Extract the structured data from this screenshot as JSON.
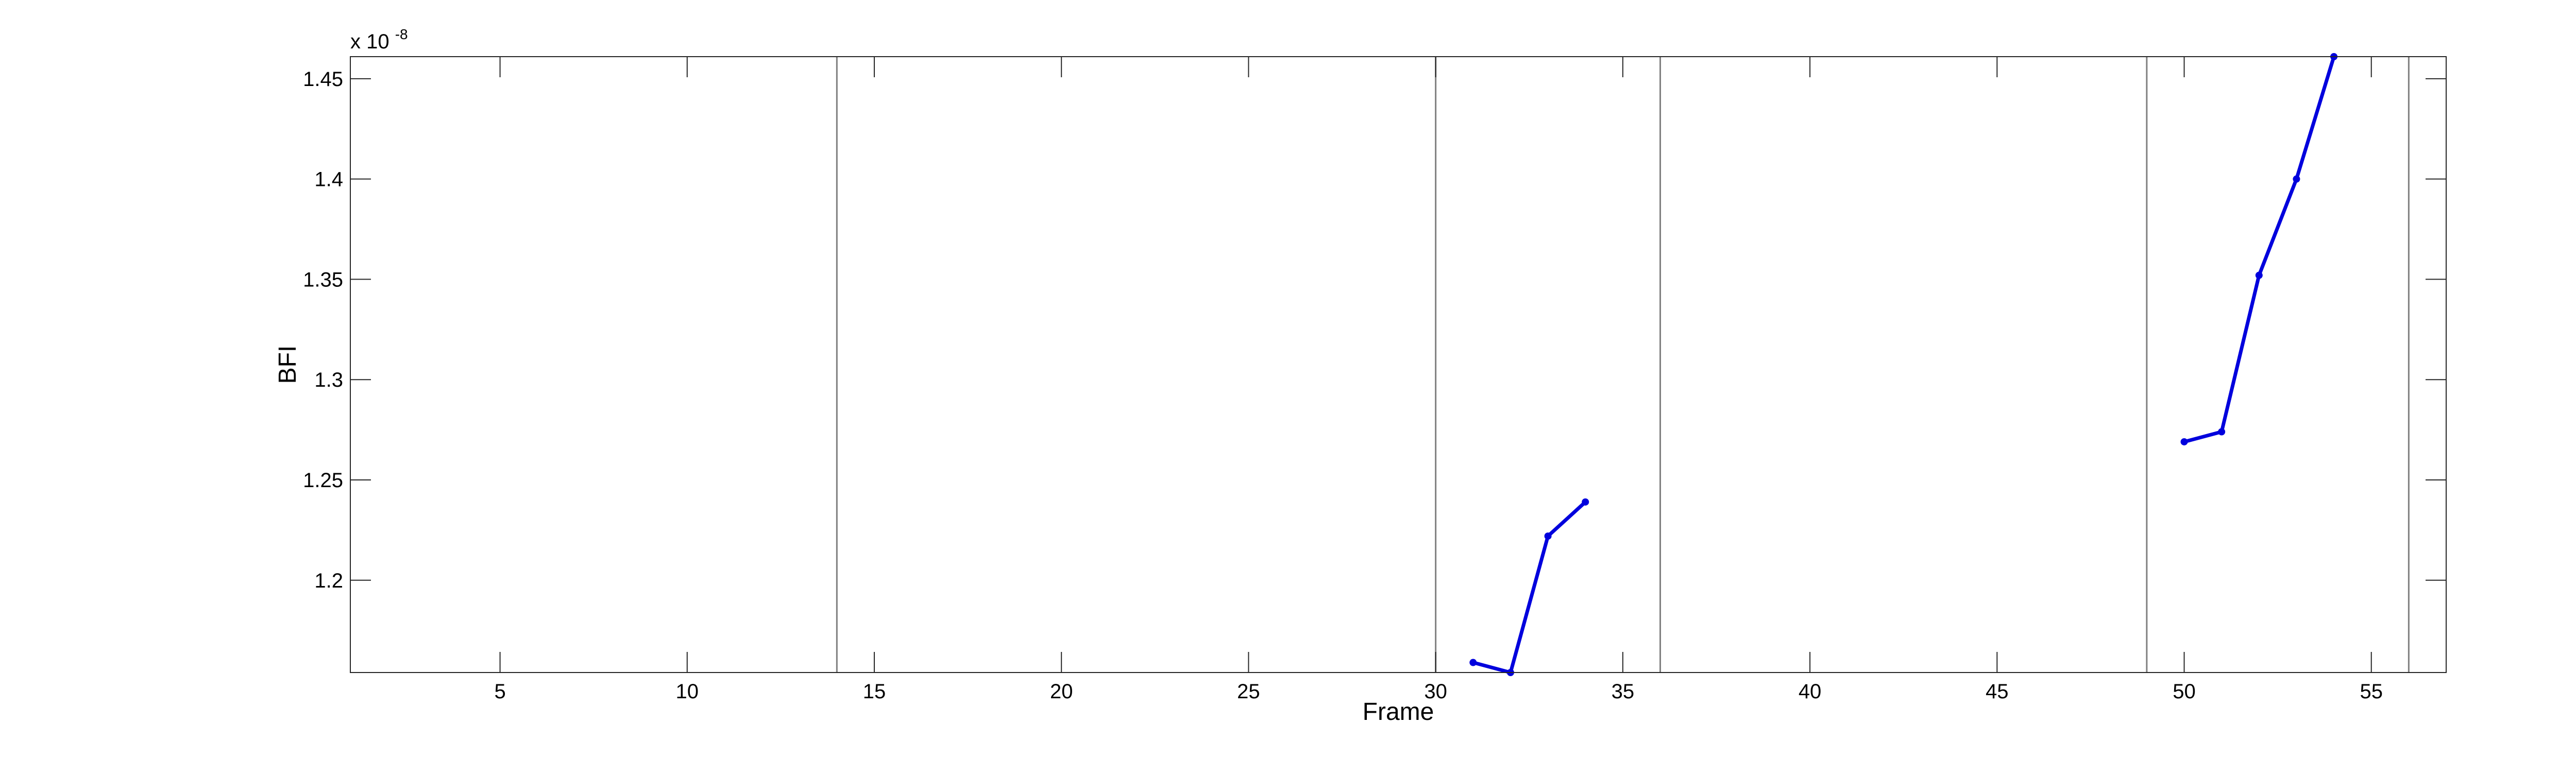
{
  "chart_data": {
    "type": "line",
    "title": "",
    "xlabel": "Frame",
    "ylabel": "BFI",
    "y_exponent_base": "x 10",
    "y_exponent_power": "-8",
    "xlim": [
      1,
      57
    ],
    "ylim": [
      1.154,
      1.461
    ],
    "xticks": [
      5,
      10,
      15,
      20,
      25,
      30,
      35,
      40,
      45,
      50,
      55
    ],
    "xtick_labels": [
      "5",
      "10",
      "15",
      "20",
      "25",
      "30",
      "35",
      "40",
      "45",
      "50",
      "55"
    ],
    "yticks": [
      1.2,
      1.25,
      1.3,
      1.35,
      1.4,
      1.45
    ],
    "ytick_labels": [
      "1.2",
      "1.25",
      "1.3",
      "1.35",
      "1.4",
      "1.45"
    ],
    "vertical_lines_x": [
      14,
      30,
      36,
      49,
      56
    ],
    "grid": false,
    "series": [
      {
        "color": "#0000dd",
        "x": [
          31,
          32,
          33,
          34
        ],
        "y": [
          1.159,
          1.154,
          1.222,
          1.239
        ]
      },
      {
        "color": "#0000dd",
        "x": [
          50,
          51,
          52,
          53,
          54
        ],
        "y": [
          1.269,
          1.274,
          1.352,
          1.4,
          1.461
        ]
      }
    ],
    "vline_color": "#808080"
  }
}
